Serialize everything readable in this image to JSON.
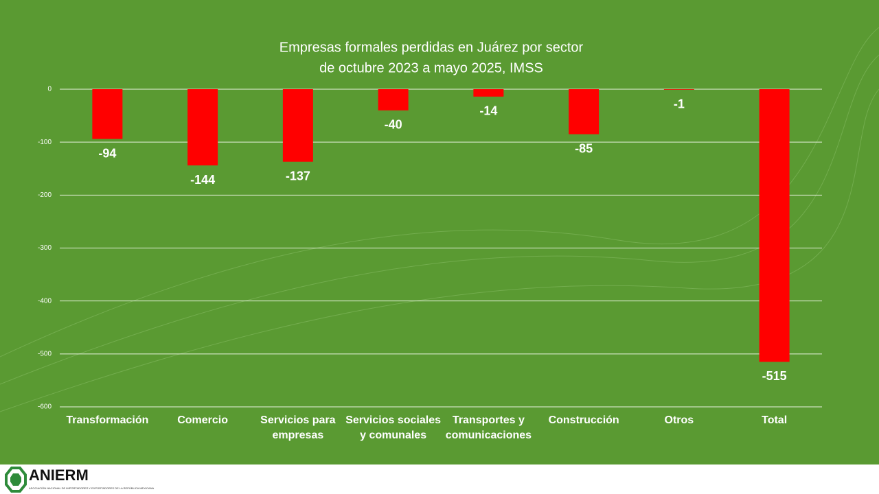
{
  "chart_data": {
    "type": "bar",
    "title": "Empresas formales perdidas en Juárez por sector",
    "subtitle": "de octubre 2023 a mayo 2025, IMSS",
    "categories": [
      "Transformación",
      "Comercio",
      "Servicios para empresas",
      "Servicios sociales y comunales",
      "Transportes y comunicaciones",
      "Construcción",
      "Otros",
      "Total"
    ],
    "values": [
      -94,
      -144,
      -137,
      -40,
      -14,
      -85,
      -1,
      -515
    ],
    "color": "#ff0000",
    "ylim": [
      -600,
      0
    ],
    "yticks": [
      0,
      -100,
      -200,
      -300,
      -400,
      -500,
      -600
    ],
    "grid": true
  },
  "logo": {
    "name": "ANIERM",
    "tagline": "ASOCIACIÓN NACIONAL DE IMPORTADORES Y EXPORTADORES DE LA REPÚBLICA MEXICANA"
  }
}
